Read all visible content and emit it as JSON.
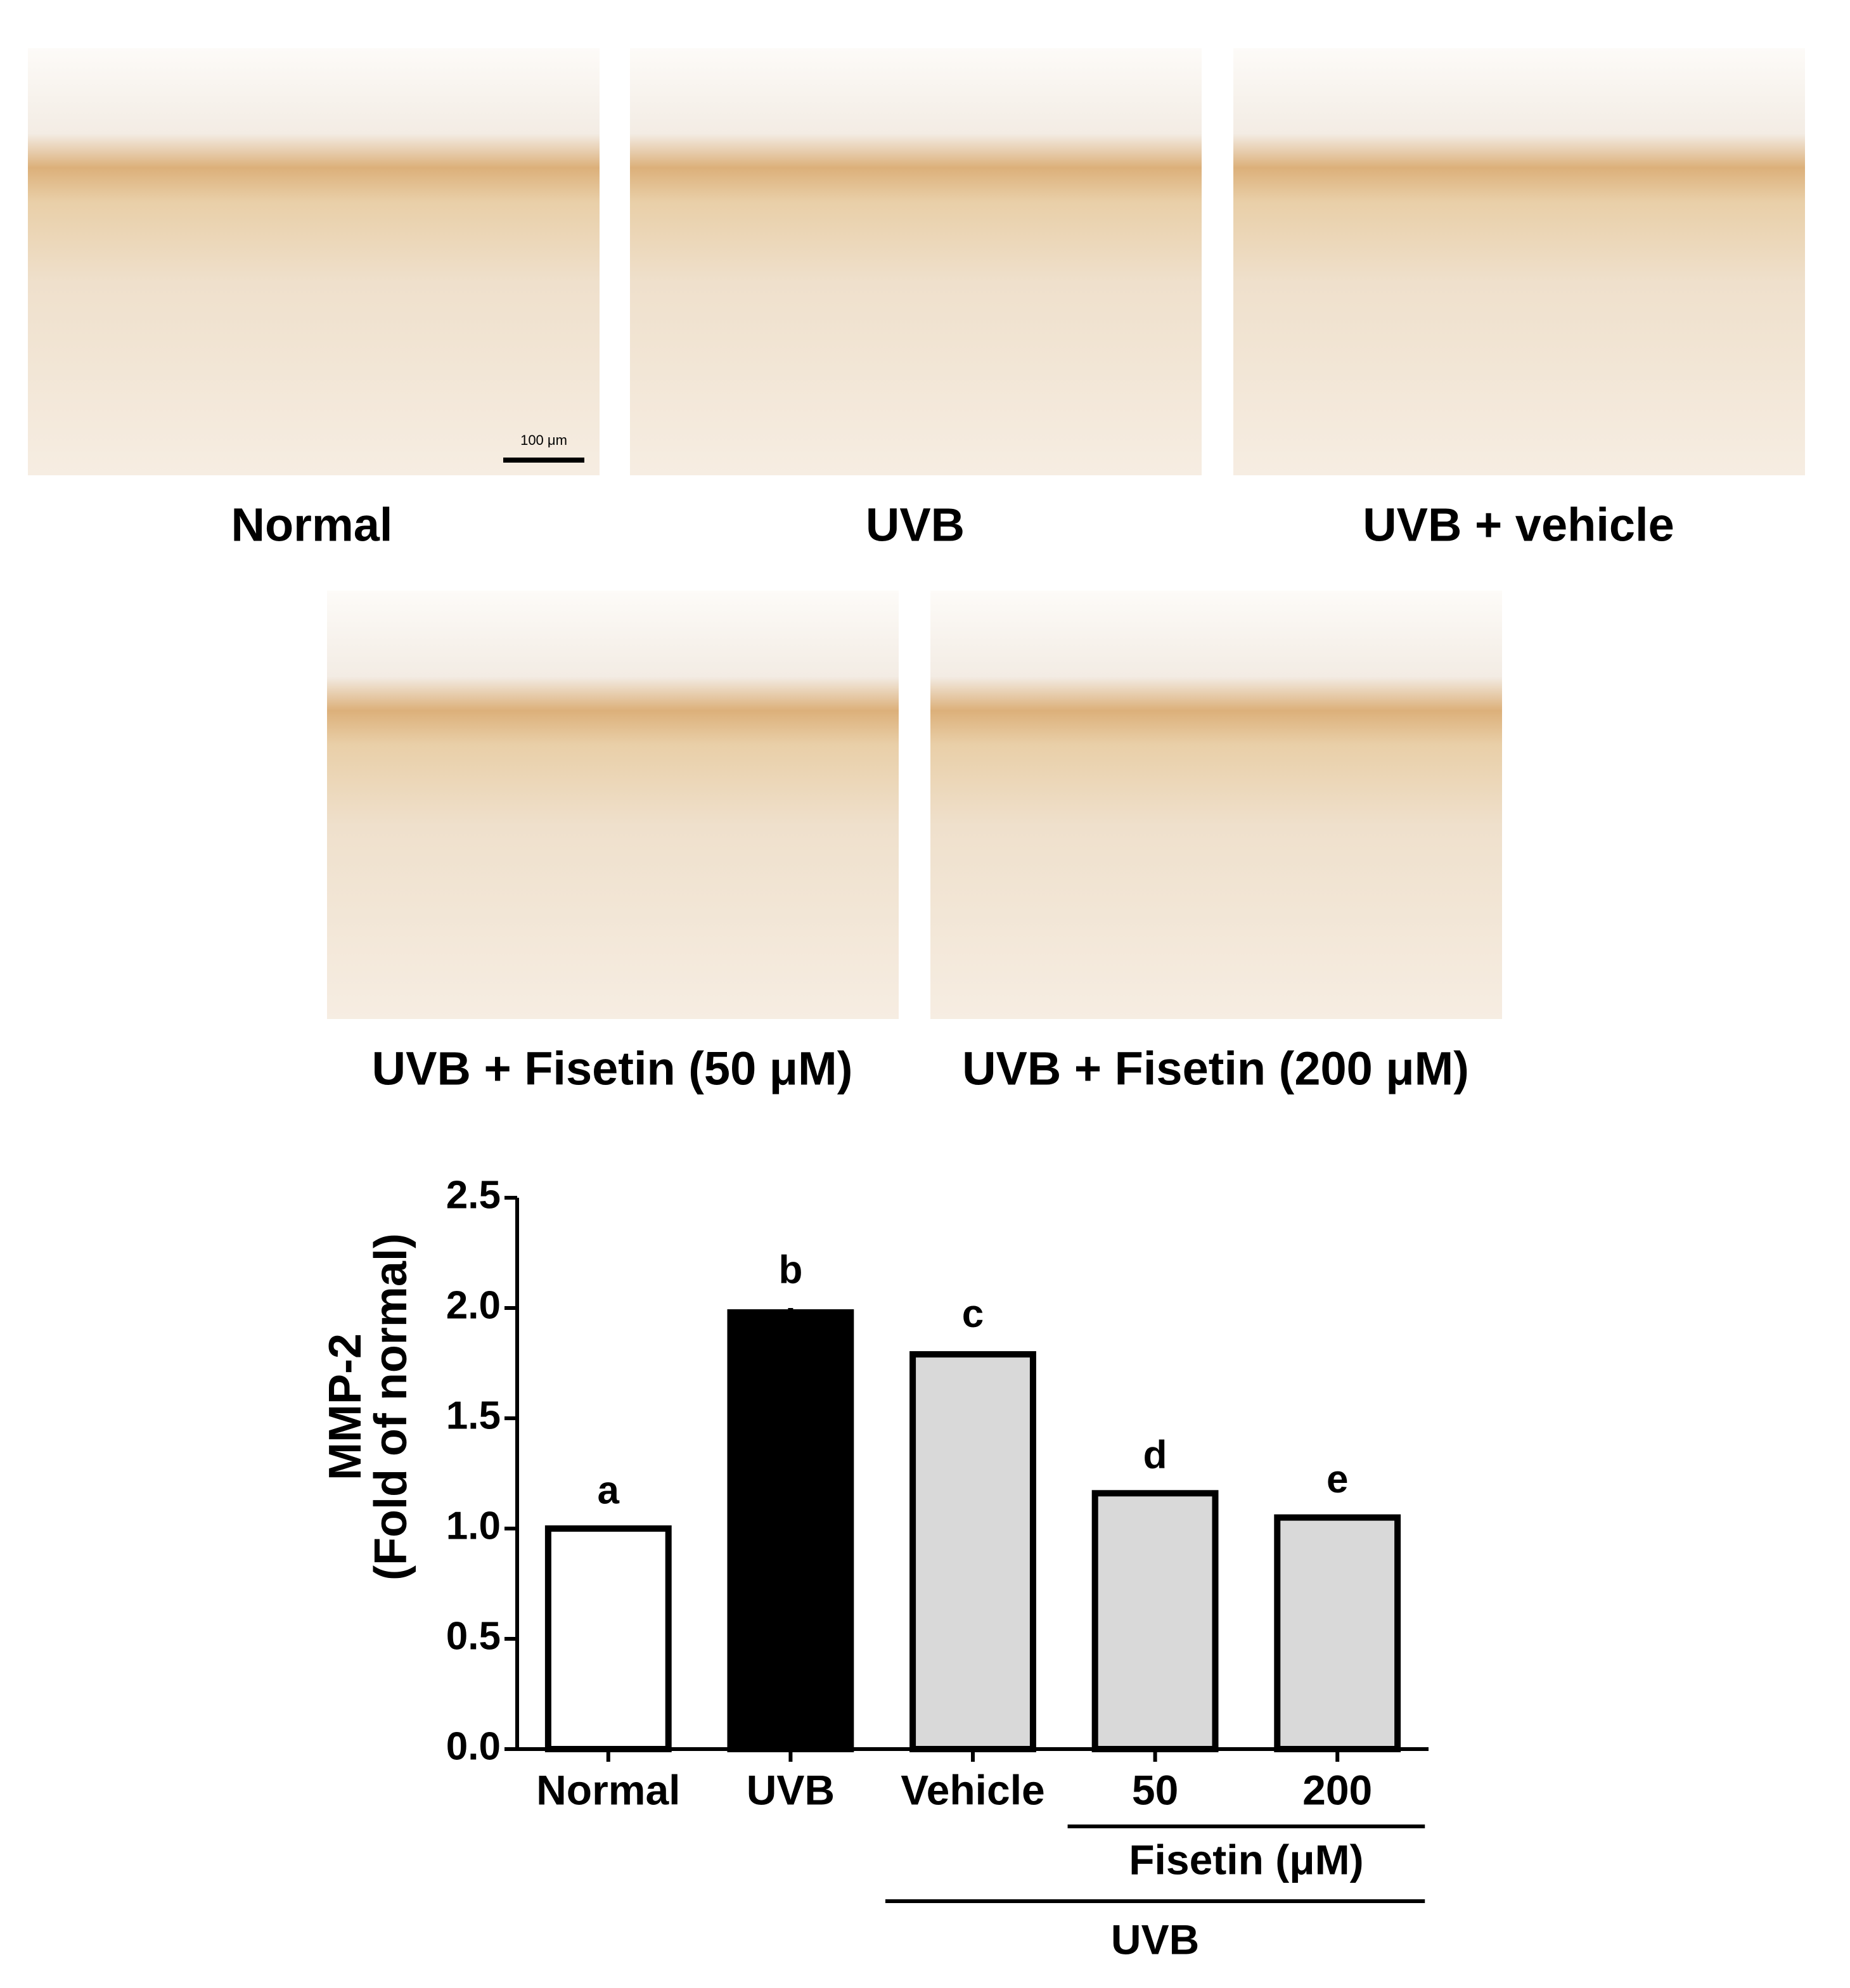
{
  "figure": {
    "panels": [
      "Normal",
      "UVB",
      "UVB + vehicle",
      "UVB + Fisetin (50 μM)",
      "UVB + Fisetin (200 μM)"
    ],
    "scale_bar": "100 μm"
  },
  "chart_data": {
    "type": "bar",
    "y_label": [
      "MMP-2",
      "(Fold of normal)"
    ],
    "categories": [
      "Normal",
      "UVB",
      "Vehicle",
      "50",
      "200"
    ],
    "values": [
      1.0,
      1.98,
      1.79,
      1.16,
      1.05
    ],
    "errors": [
      0,
      0.02,
      0.01,
      0,
      0
    ],
    "annotations": [
      "a",
      "b",
      "c",
      "d",
      "e"
    ],
    "colors": [
      "#ffffff",
      "#000000",
      "#d9d9d9",
      "#d9d9d9",
      "#d9d9d9"
    ],
    "group_labels": [
      "Fisetin (μM)",
      "UVB"
    ],
    "ylim": [
      0,
      2.5
    ],
    "yticks": [
      {
        "value": 0,
        "label": "0.0"
      },
      0.5,
      {
        "value": 1,
        "label": "1.0"
      },
      1.5,
      {
        "value": 2,
        "label": "2.0"
      },
      2.5
    ]
  }
}
